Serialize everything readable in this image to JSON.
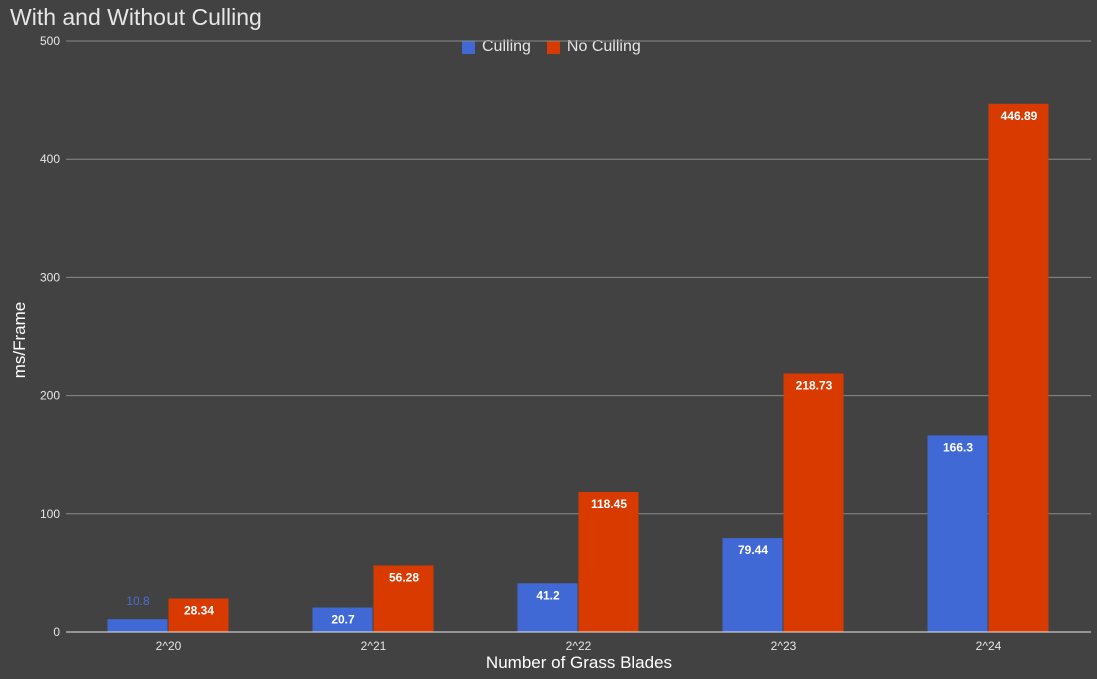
{
  "chart_data": {
    "type": "bar",
    "title": "With and Without Culling",
    "xlabel": "Number of Grass Blades",
    "ylabel": "ms/Frame",
    "categories": [
      "2^20",
      "2^21",
      "2^22",
      "2^23",
      "2^24"
    ],
    "series": [
      {
        "name": "Culling",
        "color": "#4169d6",
        "values": [
          10.8,
          20.7,
          41.2,
          79.44,
          166.3
        ],
        "labels": [
          "10.8",
          "20.7",
          "41.2",
          "79.44",
          "166.3"
        ]
      },
      {
        "name": "No Culling",
        "color": "#d93a00",
        "values": [
          28.34,
          56.28,
          118.45,
          218.73,
          446.89
        ],
        "labels": [
          "28.34",
          "56.28",
          "118.45",
          "218.73",
          "446.89"
        ]
      }
    ],
    "ylim": [
      0,
      500
    ],
    "yticks": [
      0,
      100,
      200,
      300,
      400,
      500
    ],
    "ytick_labels": [
      "0",
      "100",
      "200",
      "300",
      "400",
      "500"
    ],
    "grid": true,
    "legend_position": "top"
  },
  "colors": {
    "background": "#424242",
    "gridline": "#8a8a8a",
    "axis_line": "#e6e6e6",
    "text": "#e6e6e6"
  }
}
